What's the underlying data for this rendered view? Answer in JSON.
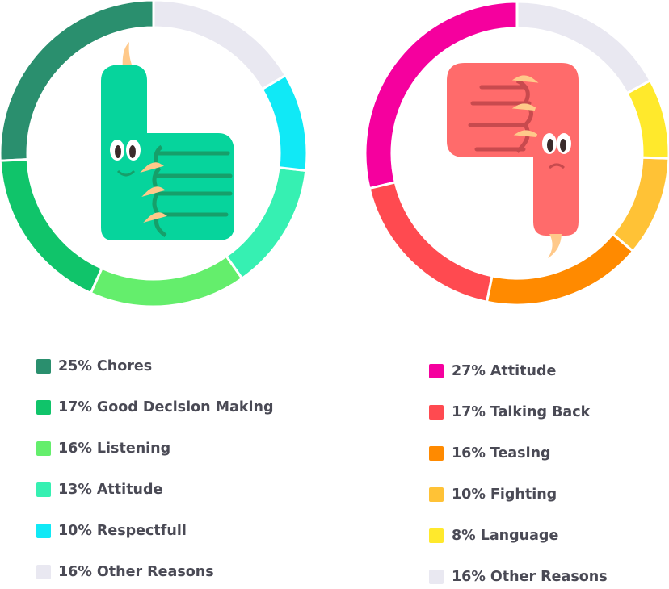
{
  "chart_data": [
    {
      "type": "donut",
      "categories": [
        "Chores",
        "Good Decision Making",
        "Listening",
        "Attitude",
        "Respectfull",
        "Other Reasons"
      ],
      "values": [
        25,
        17,
        16,
        13,
        10,
        16
      ],
      "value_labels": [
        "25%",
        "17%",
        "16%",
        "13%",
        "10%",
        "16%"
      ],
      "colors": [
        "#2a8f6e",
        "#10c46a",
        "#64ee6c",
        "#36f0b2",
        "#10e9f6",
        "#e9e8f1"
      ]
    },
    {
      "type": "donut",
      "categories": [
        "Attitude",
        "Talking Back",
        "Teasing",
        "Fighting",
        "Language",
        "Other Reasons"
      ],
      "values": [
        27,
        17,
        16,
        10,
        8,
        16
      ],
      "value_labels": [
        "27%",
        "17%",
        "16%",
        "10%",
        "8%",
        "16%"
      ],
      "colors": [
        "#f5009e",
        "#ff4a50",
        "#ff8a00",
        "#ffc236",
        "#ffe92c",
        "#e9e8f1"
      ]
    }
  ]
}
